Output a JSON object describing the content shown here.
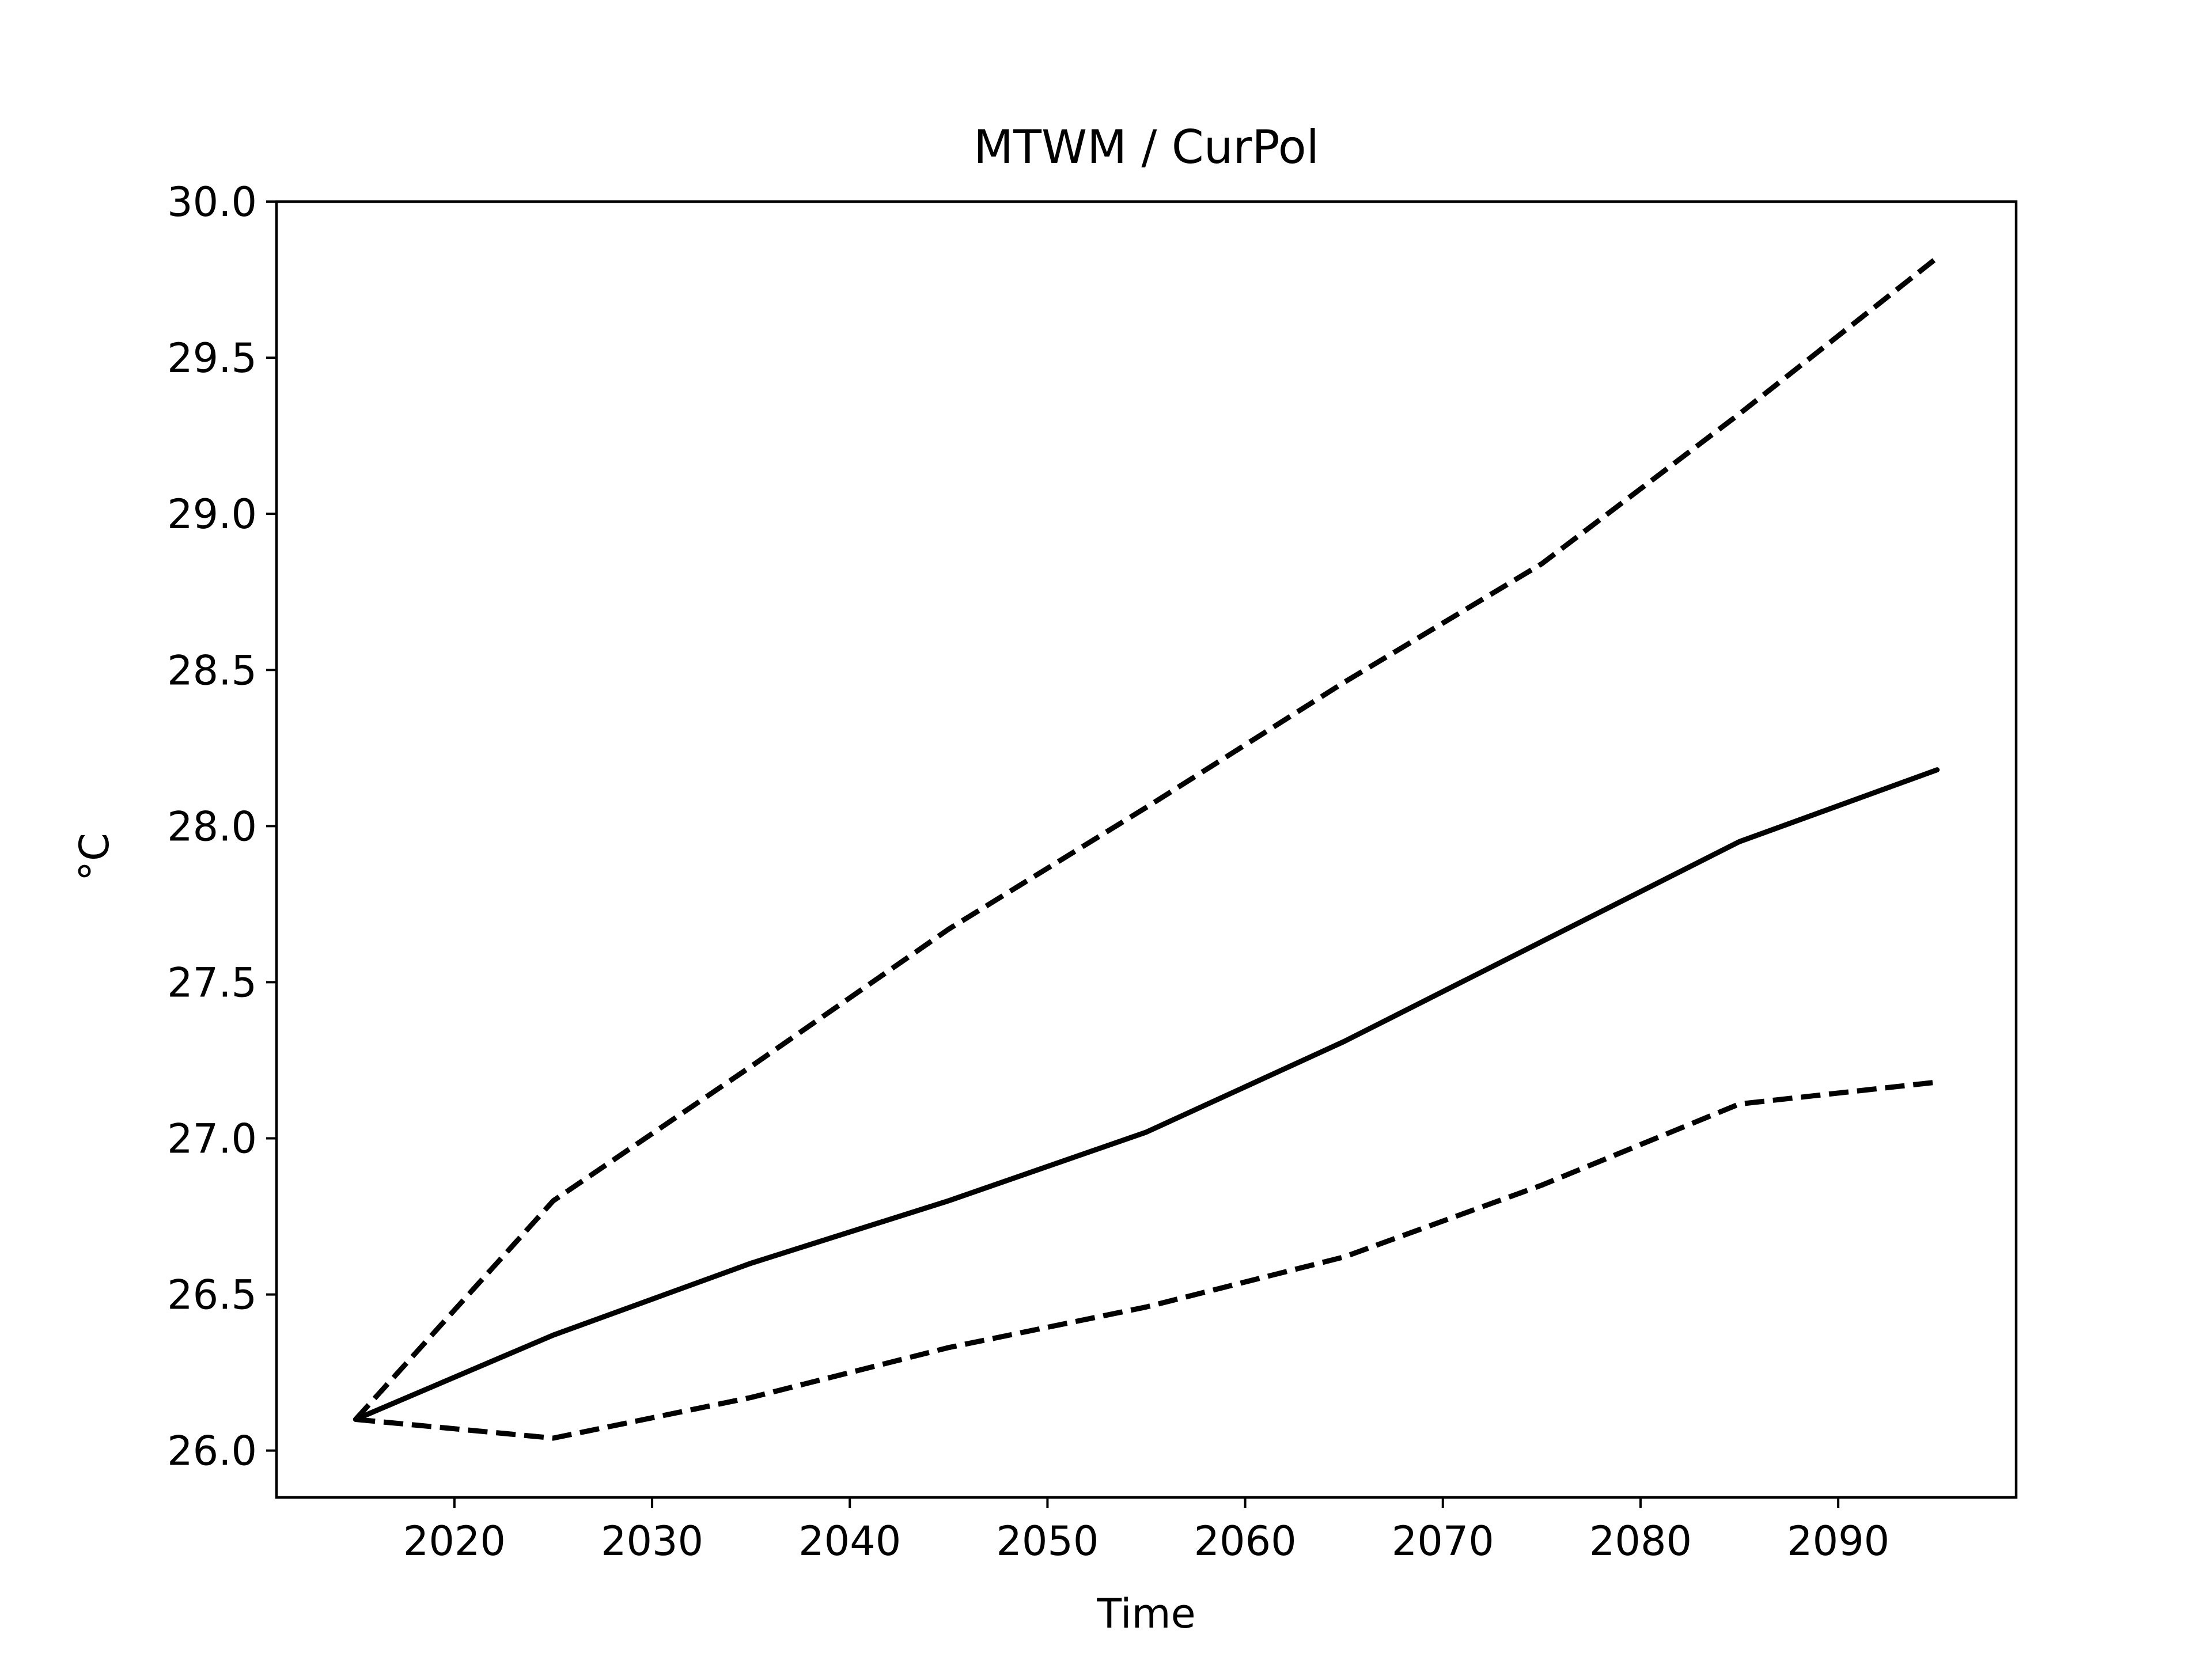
{
  "chart_data": {
    "type": "line",
    "title": "MTWM / CurPol",
    "xlabel": "Time",
    "ylabel": "°C",
    "xlim": [
      2011,
      2099
    ],
    "ylim": [
      25.85,
      30.0
    ],
    "xticks": [
      2020,
      2030,
      2040,
      2050,
      2060,
      2070,
      2080,
      2090
    ],
    "xtick_labels": [
      "2020",
      "2030",
      "2040",
      "2050",
      "2060",
      "2070",
      "2080",
      "2090"
    ],
    "yticks": [
      26.0,
      26.5,
      27.0,
      27.5,
      28.0,
      28.5,
      29.0,
      29.5,
      30.0
    ],
    "ytick_labels": [
      "26.0",
      "26.5",
      "27.0",
      "27.5",
      "28.0",
      "28.5",
      "29.0",
      "29.5",
      "30.0"
    ],
    "grid": false,
    "legend": false,
    "x": [
      2015,
      2025,
      2035,
      2045,
      2055,
      2065,
      2075,
      2085,
      2095
    ],
    "series": [
      {
        "style": "dashed",
        "color": "#000000",
        "values": [
          26.1,
          26.8,
          27.23,
          27.67,
          28.06,
          28.46,
          28.84,
          29.32,
          29.82
        ]
      },
      {
        "style": "solid",
        "color": "#000000",
        "values": [
          26.1,
          26.37,
          26.6,
          26.8,
          27.02,
          27.31,
          27.63,
          27.95,
          28.18
        ]
      },
      {
        "style": "dashed",
        "color": "#000000",
        "values": [
          26.1,
          26.04,
          26.17,
          26.33,
          26.46,
          26.62,
          26.85,
          27.11,
          27.18
        ]
      }
    ]
  }
}
